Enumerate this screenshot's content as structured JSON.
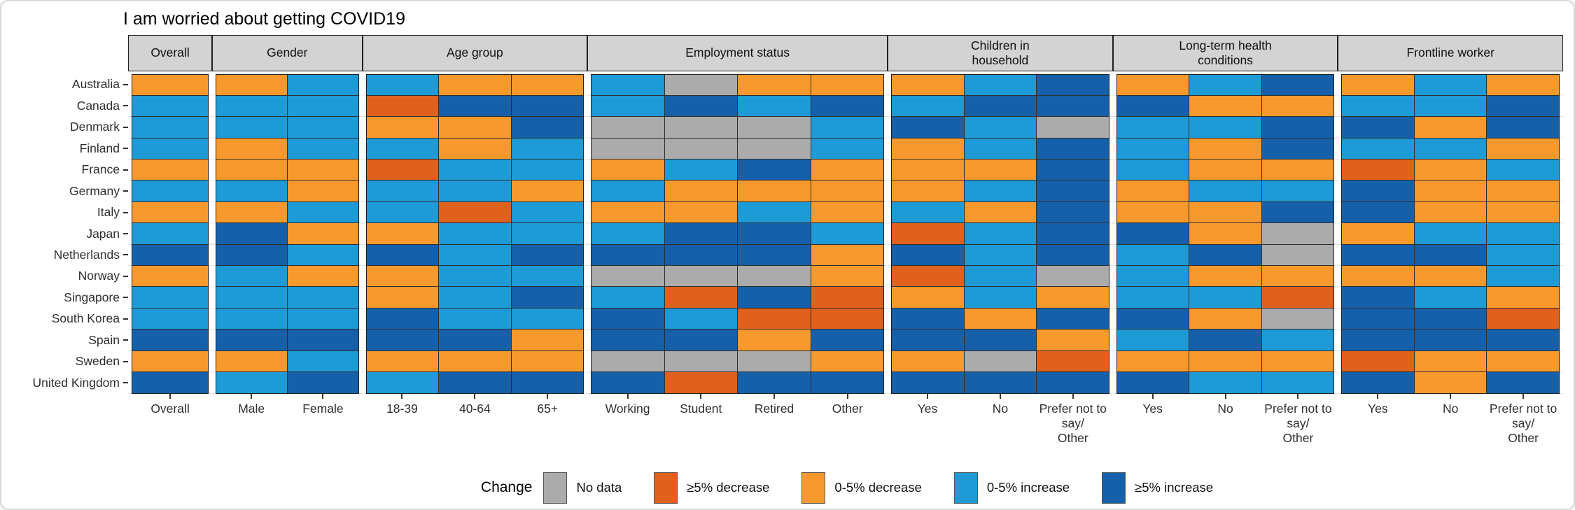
{
  "window": {
    "title": "I am worried about getting COVID19"
  },
  "chart_data": {
    "type": "heatmap",
    "title": "I am worried about getting COVID19",
    "grid": false,
    "legend_position": "bottom-center",
    "rows": [
      "Australia",
      "Canada",
      "Denmark",
      "Finland",
      "France",
      "Germany",
      "Italy",
      "Japan",
      "Netherlands",
      "Norway",
      "Singapore",
      "South Korea",
      "Spain",
      "Sweden",
      "United Kingdom"
    ],
    "colors": {
      "no_data": "#ABABAB",
      "dec5": "#E0601E",
      "dec": "#F8992D",
      "inc": "#1E9AD6",
      "inc5": "#1560A8"
    },
    "styles": {
      "header_bg": "#D3D3D3",
      "panel_border": "#1F1F1F",
      "cell_line": "#2F2F2F"
    },
    "legend": {
      "title": "Change",
      "entries": [
        {
          "label": "No data",
          "key": "no_data"
        },
        {
          "label": "≥5% decrease",
          "key": "dec5"
        },
        {
          "label": "0-5% decrease",
          "key": "dec"
        },
        {
          "label": "0-5% increase",
          "key": "inc"
        },
        {
          "label": "≥5% increase",
          "key": "inc5"
        }
      ]
    },
    "facets": [
      {
        "label": "Overall",
        "columns": [
          "Overall"
        ],
        "values": [
          [
            "dec"
          ],
          [
            "inc"
          ],
          [
            "inc"
          ],
          [
            "inc"
          ],
          [
            "dec"
          ],
          [
            "inc"
          ],
          [
            "dec"
          ],
          [
            "inc"
          ],
          [
            "inc5"
          ],
          [
            "dec"
          ],
          [
            "inc"
          ],
          [
            "inc"
          ],
          [
            "inc5"
          ],
          [
            "dec"
          ],
          [
            "inc5"
          ]
        ]
      },
      {
        "label": "Gender",
        "columns": [
          "Male",
          "Female"
        ],
        "values": [
          [
            "dec",
            "inc"
          ],
          [
            "inc",
            "inc"
          ],
          [
            "inc",
            "inc"
          ],
          [
            "dec",
            "inc"
          ],
          [
            "dec",
            "dec"
          ],
          [
            "inc",
            "dec"
          ],
          [
            "dec",
            "inc"
          ],
          [
            "inc5",
            "dec"
          ],
          [
            "inc5",
            "inc"
          ],
          [
            "inc",
            "dec"
          ],
          [
            "inc",
            "inc"
          ],
          [
            "inc",
            "inc"
          ],
          [
            "inc5",
            "inc5"
          ],
          [
            "dec",
            "inc"
          ],
          [
            "inc",
            "inc5"
          ]
        ]
      },
      {
        "label": "Age group",
        "columns": [
          "18-39",
          "40-64",
          "65+"
        ],
        "values": [
          [
            "inc",
            "dec",
            "dec"
          ],
          [
            "dec5",
            "inc5",
            "inc5"
          ],
          [
            "dec",
            "dec",
            "inc5"
          ],
          [
            "inc",
            "dec",
            "inc"
          ],
          [
            "dec5",
            "inc",
            "inc"
          ],
          [
            "inc",
            "inc",
            "dec"
          ],
          [
            "inc",
            "dec5",
            "inc"
          ],
          [
            "dec",
            "inc",
            "inc"
          ],
          [
            "inc5",
            "inc",
            "inc5"
          ],
          [
            "dec",
            "inc",
            "inc"
          ],
          [
            "dec",
            "inc",
            "inc5"
          ],
          [
            "inc5",
            "inc",
            "inc"
          ],
          [
            "inc5",
            "inc5",
            "dec"
          ],
          [
            "dec",
            "dec",
            "dec"
          ],
          [
            "inc",
            "inc5",
            "inc5"
          ]
        ]
      },
      {
        "label": "Employment status",
        "columns": [
          "Working",
          "Student",
          "Retired",
          "Other"
        ],
        "values": [
          [
            "inc",
            "no_data",
            "dec",
            "dec"
          ],
          [
            "inc",
            "inc5",
            "inc",
            "inc5"
          ],
          [
            "no_data",
            "no_data",
            "no_data",
            "inc"
          ],
          [
            "no_data",
            "no_data",
            "no_data",
            "inc"
          ],
          [
            "dec",
            "inc",
            "inc5",
            "dec"
          ],
          [
            "inc",
            "dec",
            "dec",
            "dec"
          ],
          [
            "dec",
            "dec",
            "inc",
            "dec"
          ],
          [
            "inc",
            "inc5",
            "inc5",
            "inc"
          ],
          [
            "inc5",
            "inc5",
            "inc5",
            "dec"
          ],
          [
            "no_data",
            "no_data",
            "no_data",
            "dec"
          ],
          [
            "inc",
            "dec5",
            "inc5",
            "dec5"
          ],
          [
            "inc5",
            "inc",
            "dec5",
            "dec5"
          ],
          [
            "inc5",
            "inc5",
            "dec",
            "inc5"
          ],
          [
            "no_data",
            "no_data",
            "no_data",
            "dec"
          ],
          [
            "inc5",
            "dec5",
            "inc5",
            "inc5"
          ]
        ]
      },
      {
        "label": "Children in\nhousehold",
        "columns": [
          "Yes",
          "No",
          "Prefer not to say/\nOther"
        ],
        "values": [
          [
            "dec",
            "inc",
            "inc5"
          ],
          [
            "inc",
            "inc5",
            "inc5"
          ],
          [
            "inc5",
            "inc",
            "no_data"
          ],
          [
            "dec",
            "inc",
            "inc5"
          ],
          [
            "dec",
            "dec",
            "inc5"
          ],
          [
            "dec",
            "inc",
            "inc5"
          ],
          [
            "inc",
            "dec",
            "inc5"
          ],
          [
            "dec5",
            "inc",
            "inc5"
          ],
          [
            "inc5",
            "inc",
            "inc5"
          ],
          [
            "dec5",
            "inc",
            "no_data"
          ],
          [
            "dec",
            "inc",
            "dec"
          ],
          [
            "inc5",
            "dec",
            "inc5"
          ],
          [
            "inc5",
            "inc5",
            "dec"
          ],
          [
            "dec",
            "no_data",
            "dec5"
          ],
          [
            "inc5",
            "inc5",
            "inc5"
          ]
        ]
      },
      {
        "label": "Long-term health\nconditions",
        "columns": [
          "Yes",
          "No",
          "Prefer not to say/\nOther"
        ],
        "values": [
          [
            "dec",
            "inc",
            "inc5"
          ],
          [
            "inc5",
            "dec",
            "dec"
          ],
          [
            "inc",
            "inc",
            "inc5"
          ],
          [
            "inc",
            "dec",
            "inc5"
          ],
          [
            "inc",
            "dec",
            "dec"
          ],
          [
            "dec",
            "inc",
            "inc"
          ],
          [
            "dec",
            "dec",
            "inc5"
          ],
          [
            "inc5",
            "dec",
            "no_data"
          ],
          [
            "inc",
            "inc5",
            "no_data"
          ],
          [
            "inc",
            "dec",
            "dec"
          ],
          [
            "inc",
            "inc",
            "dec5"
          ],
          [
            "inc5",
            "dec",
            "no_data"
          ],
          [
            "inc",
            "inc5",
            "inc"
          ],
          [
            "dec",
            "dec",
            "dec"
          ],
          [
            "inc5",
            "inc",
            "inc"
          ]
        ]
      },
      {
        "label": "Frontline worker",
        "columns": [
          "Yes",
          "No",
          "Prefer not to say/\nOther"
        ],
        "values": [
          [
            "dec",
            "inc",
            "dec"
          ],
          [
            "inc",
            "inc",
            "inc5"
          ],
          [
            "inc5",
            "dec",
            "inc5"
          ],
          [
            "inc",
            "inc",
            "dec"
          ],
          [
            "dec5",
            "dec",
            "inc"
          ],
          [
            "inc5",
            "dec",
            "dec"
          ],
          [
            "inc5",
            "dec",
            "dec"
          ],
          [
            "dec",
            "inc",
            "inc"
          ],
          [
            "inc5",
            "inc5",
            "inc"
          ],
          [
            "dec",
            "dec",
            "inc"
          ],
          [
            "inc5",
            "inc",
            "dec"
          ],
          [
            "inc5",
            "inc5",
            "dec5"
          ],
          [
            "inc5",
            "inc5",
            "inc5"
          ],
          [
            "dec5",
            "dec",
            "dec"
          ],
          [
            "inc5",
            "dec",
            "inc5"
          ]
        ]
      }
    ]
  }
}
